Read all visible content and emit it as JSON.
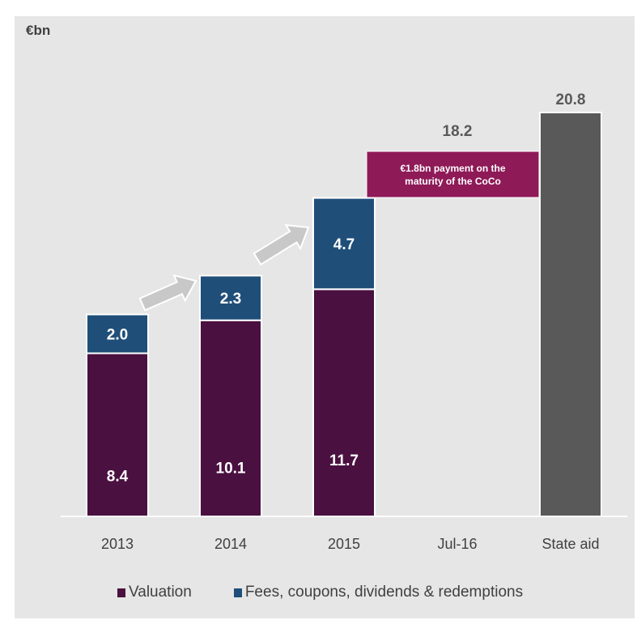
{
  "unit_label": "€bn",
  "callout": {
    "text": "€1.8bn payment on the\nmaturity of the CoCo"
  },
  "colors": {
    "valuation": "#4a1040",
    "fees": "#1f4e79",
    "state_aid": "#595959",
    "callout": "#8f1a58",
    "arrow": "#c8c8c8",
    "label_dark": "#404040",
    "background": "#e6e6e6"
  },
  "chart_data": {
    "type": "bar",
    "stacked": true,
    "categories": [
      "2013",
      "2014",
      "2015",
      "Jul-16",
      "State aid"
    ],
    "series": [
      {
        "name": "Valuation",
        "values": [
          8.4,
          10.1,
          11.7,
          null,
          null
        ]
      },
      {
        "name": "Fees, coupons, dividends & redemptions",
        "values": [
          2.0,
          2.3,
          4.7,
          null,
          null
        ]
      },
      {
        "name": "",
        "values": [
          null,
          null,
          null,
          null,
          20.8
        ]
      }
    ],
    "totals": [
      {
        "category": "Jul-16",
        "value": "18.2"
      },
      {
        "category": "State aid",
        "value": "20.8"
      }
    ],
    "ylim": [
      0,
      20.8
    ],
    "legend": "bottom",
    "grid": false
  }
}
